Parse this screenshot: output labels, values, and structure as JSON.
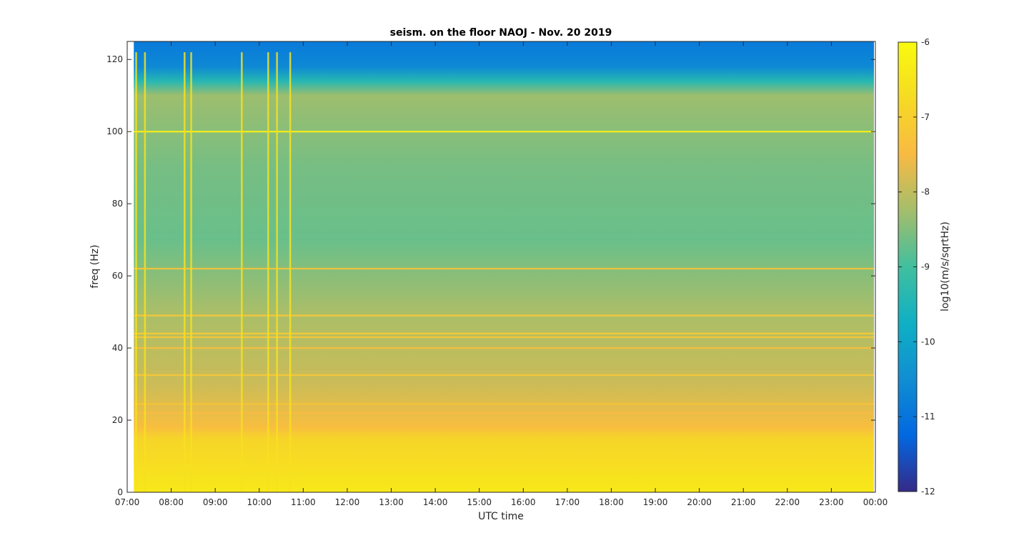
{
  "chart_data": {
    "type": "heatmap",
    "title": "seism. on the floor NAOJ - Nov. 20 2019",
    "xlabel": "UTC time",
    "ylabel": "freq (Hz)",
    "x_ticks": [
      "07:00",
      "08:00",
      "09:00",
      "10:00",
      "11:00",
      "12:00",
      "13:00",
      "14:00",
      "15:00",
      "16:00",
      "17:00",
      "18:00",
      "19:00",
      "20:00",
      "21:00",
      "22:00",
      "23:00",
      "00:00"
    ],
    "xlim_hours": [
      7,
      24
    ],
    "data_start_hour": 7.15,
    "y_ticks": [
      0,
      20,
      40,
      60,
      80,
      100,
      120
    ],
    "ylim": [
      0,
      125
    ],
    "colorbar": {
      "label": "log10(m/s/sqrtHz)",
      "range": [
        -12,
        -6
      ],
      "ticks": [
        -12,
        -11,
        -10,
        -9,
        -8,
        -7,
        -6
      ],
      "colormap": "parula",
      "colors": [
        "#352a87",
        "#0268e1",
        "#108ed2",
        "#0fb0c4",
        "#41bf9e",
        "#a4be6b",
        "#f8ba43",
        "#f6da23",
        "#f9fb0e"
      ]
    },
    "frequency_profile": [
      {
        "freq": 0,
        "value": -6.4
      },
      {
        "freq": 5,
        "value": -6.6
      },
      {
        "freq": 15,
        "value": -6.9
      },
      {
        "freq": 18,
        "value": -7.4
      },
      {
        "freq": 30,
        "value": -7.9
      },
      {
        "freq": 50,
        "value": -8.2
      },
      {
        "freq": 70,
        "value": -8.7
      },
      {
        "freq": 90,
        "value": -8.6
      },
      {
        "freq": 110,
        "value": -8.3
      },
      {
        "freq": 114,
        "value": -9.4
      },
      {
        "freq": 118,
        "value": -10.6
      },
      {
        "freq": 125,
        "value": -10.9
      }
    ],
    "line_features": [
      {
        "freq": 100,
        "value": -6.3
      },
      {
        "freq": 62,
        "value": -7.3
      },
      {
        "freq": 49,
        "value": -7.2
      },
      {
        "freq": 44,
        "value": -7.1
      },
      {
        "freq": 43,
        "value": -7.2
      },
      {
        "freq": 40,
        "value": -7.4
      },
      {
        "freq": 32.5,
        "value": -7.2
      },
      {
        "freq": 24.5,
        "value": -7.3
      },
      {
        "freq": 22,
        "value": -7.5
      }
    ],
    "broadband_events_hours": [
      7.2,
      7.4,
      8.3,
      8.45,
      9.6,
      10.2,
      10.4,
      10.7
    ]
  }
}
